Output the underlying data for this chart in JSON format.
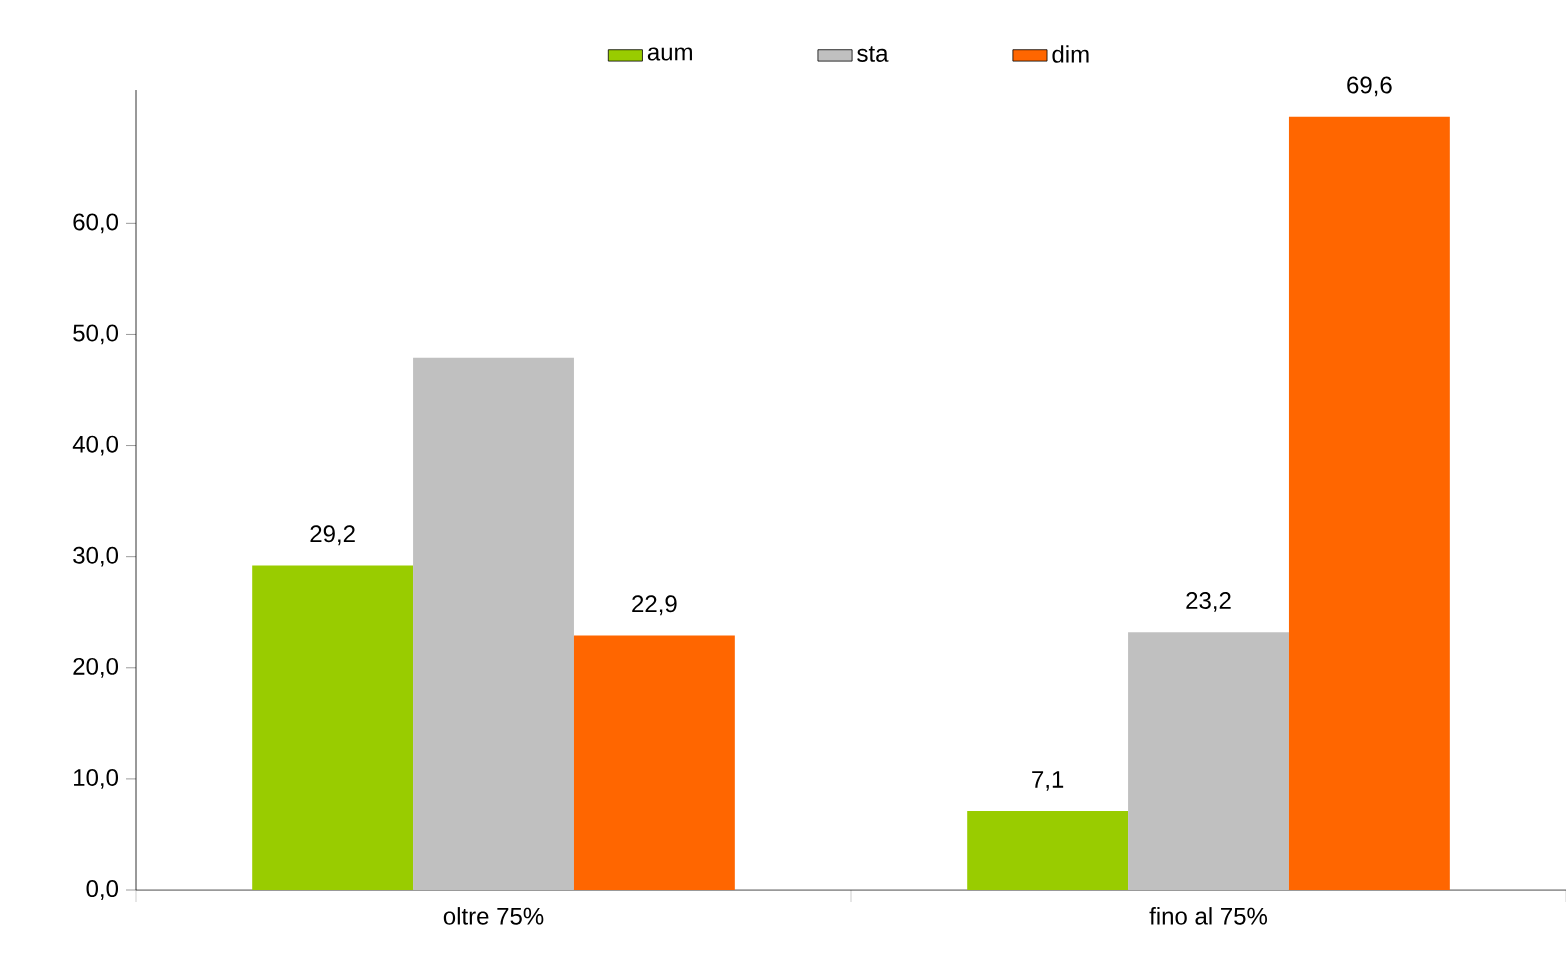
{
  "chart_data": {
    "type": "bar",
    "categories": [
      "oltre 75%",
      "fino al 75%"
    ],
    "series": [
      {
        "name": "aum",
        "color": "#99cc00",
        "values": [
          29.2,
          7.1
        ],
        "value_labels": [
          "29,2",
          "7,1"
        ]
      },
      {
        "name": "sta",
        "color": "#c0c0c0",
        "values": [
          47.9,
          23.2
        ],
        "value_labels": [
          null,
          "23,2"
        ]
      },
      {
        "name": "dim",
        "color": "#ff6600",
        "values": [
          22.9,
          69.6
        ],
        "value_labels": [
          "22,9",
          "69,6"
        ]
      }
    ],
    "ylim": [
      0,
      72
    ],
    "yticks": [
      {
        "value": 0,
        "label": "0,0"
      },
      {
        "value": 10,
        "label": "10,0"
      },
      {
        "value": 20,
        "label": "20,0"
      },
      {
        "value": 30,
        "label": "30,0"
      },
      {
        "value": 40,
        "label": "40,0"
      },
      {
        "value": 50,
        "label": "50,0"
      },
      {
        "value": 60,
        "label": "60,0"
      }
    ],
    "grid": false,
    "legend": "top"
  }
}
